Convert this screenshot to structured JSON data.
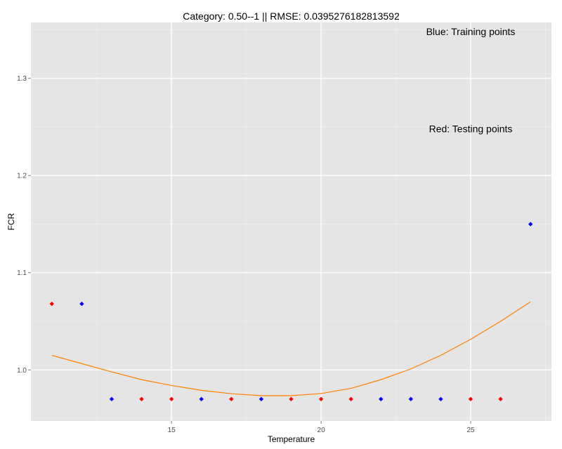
{
  "chart_data": {
    "type": "scatter",
    "title": "Category: 0.50--1 || RMSE: 0.0395276182813592",
    "xlabel": "Temperature",
    "ylabel": "FCR",
    "xlim": [
      10.3,
      27.7
    ],
    "ylim": [
      0.9475,
      1.3575
    ],
    "x_ticks": [
      15,
      20,
      25
    ],
    "y_ticks": [
      1.0,
      1.1,
      1.2,
      1.3
    ],
    "y_tick_labels": [
      "1.0",
      "1.1",
      "1.2",
      "1.3"
    ],
    "grid": true,
    "annotations": [
      {
        "text": "Blue: Training points",
        "x": 25,
        "y": 1.348
      },
      {
        "text": "Red: Testing points",
        "x": 25,
        "y": 1.248
      }
    ],
    "series": [
      {
        "role": "training",
        "color": "#0000ff",
        "points": [
          {
            "x": 12,
            "y": 1.068
          },
          {
            "x": 13,
            "y": 0.97
          },
          {
            "x": 16,
            "y": 0.97
          },
          {
            "x": 18,
            "y": 0.97
          },
          {
            "x": 22,
            "y": 0.97
          },
          {
            "x": 23,
            "y": 0.97
          },
          {
            "x": 24,
            "y": 0.97
          },
          {
            "x": 27,
            "y": 1.15
          }
        ]
      },
      {
        "role": "testing",
        "color": "#ff0000",
        "points": [
          {
            "x": 11,
            "y": 1.068
          },
          {
            "x": 14,
            "y": 0.97
          },
          {
            "x": 15,
            "y": 0.97
          },
          {
            "x": 17,
            "y": 0.97
          },
          {
            "x": 19,
            "y": 0.97
          },
          {
            "x": 20,
            "y": 0.97
          },
          {
            "x": 21,
            "y": 0.97
          },
          {
            "x": 25,
            "y": 0.97
          },
          {
            "x": 26,
            "y": 0.97
          }
        ]
      },
      {
        "role": "fit",
        "type": "line",
        "color": "#ff8000",
        "points": [
          {
            "x": 11,
            "y": 1.015
          },
          {
            "x": 12,
            "y": 1.0065
          },
          {
            "x": 13,
            "y": 0.998
          },
          {
            "x": 14,
            "y": 0.99
          },
          {
            "x": 15,
            "y": 0.984
          },
          {
            "x": 16,
            "y": 0.979
          },
          {
            "x": 17,
            "y": 0.9755
          },
          {
            "x": 18,
            "y": 0.9735
          },
          {
            "x": 19,
            "y": 0.9735
          },
          {
            "x": 20,
            "y": 0.9757
          },
          {
            "x": 21,
            "y": 0.981
          },
          {
            "x": 22,
            "y": 0.99
          },
          {
            "x": 23,
            "y": 1.001
          },
          {
            "x": 24,
            "y": 1.015
          },
          {
            "x": 25,
            "y": 1.0315
          },
          {
            "x": 26,
            "y": 1.05
          },
          {
            "x": 27,
            "y": 1.07
          }
        ]
      }
    ]
  }
}
